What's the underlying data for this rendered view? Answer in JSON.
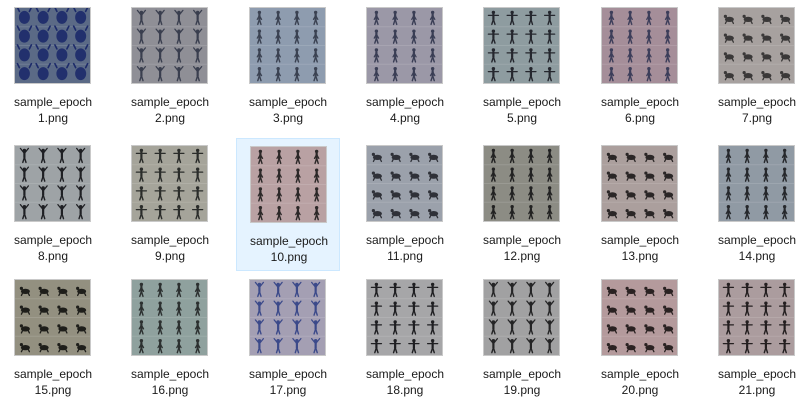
{
  "explorer": {
    "selected_index": 9,
    "files": [
      {
        "line1": "sample_epoch",
        "line2": "1.png",
        "bg": "#5b6a86",
        "fg": "#1c2a6a",
        "pose": "blob"
      },
      {
        "line1": "sample_epoch",
        "line2": "2.png",
        "bg": "#8f8f96",
        "fg": "#3a3f4f",
        "pose": "up"
      },
      {
        "line1": "sample_epoch",
        "line2": "3.png",
        "bg": "#8e9caf",
        "fg": "#3b4252",
        "pose": "stand"
      },
      {
        "line1": "sample_epoch",
        "line2": "4.png",
        "bg": "#9b98a7",
        "fg": "#3a3e55",
        "pose": "stand"
      },
      {
        "line1": "sample_epoch",
        "line2": "5.png",
        "bg": "#8e9ca0",
        "fg": "#25272e",
        "pose": "tpose"
      },
      {
        "line1": "sample_epoch",
        "line2": "6.png",
        "bg": "#a58e99",
        "fg": "#3d3e5a",
        "pose": "stand"
      },
      {
        "line1": "sample_epoch",
        "line2": "7.png",
        "bg": "#a7a19f",
        "fg": "#3a3838",
        "pose": "squat"
      },
      {
        "line1": "sample_epoch",
        "line2": "8.png",
        "bg": "#9ea3a6",
        "fg": "#1f2024",
        "pose": "up"
      },
      {
        "line1": "sample_epoch",
        "line2": "9.png",
        "bg": "#a5a49a",
        "fg": "#2a2c2a",
        "pose": "tpose"
      },
      {
        "line1": "sample_epoch",
        "line2": "10.png",
        "bg": "#b9a1a3",
        "fg": "#2c2828",
        "pose": "stand"
      },
      {
        "line1": "sample_epoch",
        "line2": "11.png",
        "bg": "#9ba1ab",
        "fg": "#2f3138",
        "pose": "squat"
      },
      {
        "line1": "sample_epoch",
        "line2": "12.png",
        "bg": "#8c8c84",
        "fg": "#222222",
        "pose": "stand"
      },
      {
        "line1": "sample_epoch",
        "line2": "13.png",
        "bg": "#ab9f9d",
        "fg": "#2a2626",
        "pose": "squat"
      },
      {
        "line1": "sample_epoch",
        "line2": "14.png",
        "bg": "#909aa4",
        "fg": "#26282c",
        "pose": "stand"
      },
      {
        "line1": "sample_epoch",
        "line2": "15.png",
        "bg": "#939080",
        "fg": "#1e1e1a",
        "pose": "squat"
      },
      {
        "line1": "sample_epoch",
        "line2": "16.png",
        "bg": "#8fa19e",
        "fg": "#2c3030",
        "pose": "stand"
      },
      {
        "line1": "sample_epoch",
        "line2": "17.png",
        "bg": "#a49fb3",
        "fg": "#3c4a8a",
        "pose": "up"
      },
      {
        "line1": "sample_epoch",
        "line2": "18.png",
        "bg": "#a6a6a8",
        "fg": "#1f1f22",
        "pose": "tpose"
      },
      {
        "line1": "sample_epoch",
        "line2": "19.png",
        "bg": "#a1a1a2",
        "fg": "#252526",
        "pose": "up"
      },
      {
        "line1": "sample_epoch",
        "line2": "20.png",
        "bg": "#b49a9c",
        "fg": "#2a2222",
        "pose": "squat"
      },
      {
        "line1": "sample_epoch",
        "line2": "21.png",
        "bg": "#ab9c9e",
        "fg": "#241f20",
        "pose": "tpose"
      }
    ]
  },
  "icons": {
    "thumbnail": "image-thumbnail-icon"
  }
}
